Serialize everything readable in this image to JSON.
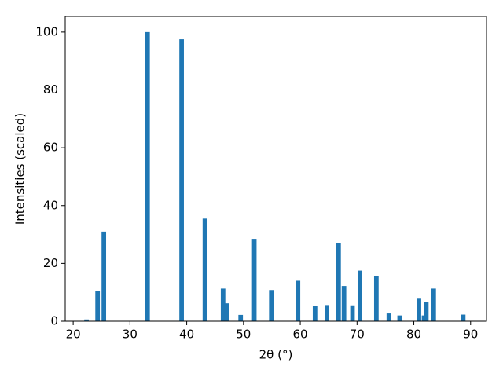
{
  "chart_data": {
    "type": "bar",
    "xlabel": "2θ (°)",
    "ylabel": "Intensities (scaled)",
    "x": [
      22.35,
      24.3,
      25.4,
      33.1,
      39.1,
      43.2,
      46.4,
      47.1,
      49.5,
      51.9,
      54.9,
      59.6,
      62.6,
      64.7,
      66.75,
      67.7,
      69.2,
      70.5,
      73.4,
      75.6,
      77.5,
      80.9,
      81.8,
      82.2,
      83.5,
      88.7
    ],
    "values": [
      0.6,
      10.5,
      31,
      100,
      97.5,
      35.5,
      11.3,
      6.2,
      2.2,
      28.5,
      10.8,
      14,
      5.2,
      5.6,
      27,
      12.2,
      5.5,
      17.5,
      15.5,
      2.7,
      2,
      7.8,
      2,
      6.6,
      11.3,
      2.3
    ],
    "color": "#1f77b4",
    "xlim": [
      18.6,
      92.8
    ],
    "xticks": [
      20,
      30,
      40,
      50,
      60,
      70,
      80,
      90
    ],
    "ylim": [
      0,
      105.4
    ],
    "yticks": [
      0,
      20,
      40,
      60,
      80,
      100
    ]
  }
}
